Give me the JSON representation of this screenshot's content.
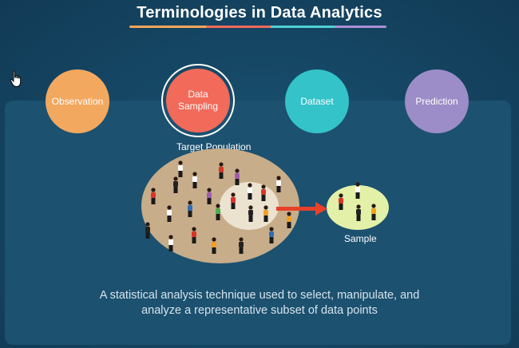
{
  "title": "Terminologies in Data Analytics",
  "circles": [
    {
      "label": "Observation",
      "color": "#f3a85f"
    },
    {
      "label": "Data\nSampling",
      "color": "#f26a5a",
      "selected": true
    },
    {
      "label": "Dataset",
      "color": "#33c3c9"
    },
    {
      "label": "Prediction",
      "color": "#9c8cc7"
    }
  ],
  "diagram": {
    "population_label": "Target Population",
    "sample_label": "Sample",
    "population_color": "#c8ad8a",
    "sample_color": "#e3f0a8",
    "arrow_color": "#e8412a"
  },
  "description": {
    "line1": "A statistical analysis technique used to select, manipulate, and",
    "line2": "analyze a representative subset of data points"
  },
  "icons": [
    "hand-cursor-icon"
  ]
}
